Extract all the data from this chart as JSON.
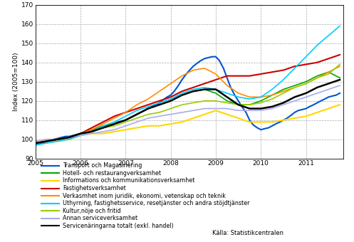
{
  "title": "",
  "ylabel": "Index (2005=100)",
  "ylim": [
    90,
    170
  ],
  "yticks": [
    90,
    100,
    110,
    120,
    130,
    140,
    150,
    160,
    170
  ],
  "xlim": [
    2005.0,
    2011.83
  ],
  "xticks": [
    2005,
    2006,
    2007,
    2008,
    2009,
    2010,
    2011
  ],
  "source_text": "Källa: Statistikcentralen",
  "legend": [
    {
      "label": "Transport och Magasinering",
      "color": "#0055CC"
    },
    {
      "label": "Hotell- och restaurangverksamhet",
      "color": "#00AA00"
    },
    {
      "label": "Informations och kommunikationsverksamhet",
      "color": "#FFD700"
    },
    {
      "label": "Fastighetsverksamhet",
      "color": "#CC0000"
    },
    {
      "label": "Verkasmhet inom juridik, ekonomi, vetenskap och teknik",
      "color": "#FF8C00"
    },
    {
      "label": "Uthyrning, fastighetsservice, resetjänster och andra stöjdtjänster",
      "color": "#00CCFF"
    },
    {
      "label": "Kultur,nöje och fritid",
      "color": "#99CC00"
    },
    {
      "label": "Annan serviceverksamhet",
      "color": "#AAAAEE"
    },
    {
      "label": "Servicenäringarna totalt (exkl. handel)",
      "color": "#000000"
    }
  ],
  "series": {
    "transport": {
      "x": [
        2005.0,
        2005.08,
        2005.17,
        2005.25,
        2005.33,
        2005.42,
        2005.5,
        2005.58,
        2005.67,
        2005.75,
        2005.83,
        2005.92,
        2006.0,
        2006.08,
        2006.17,
        2006.25,
        2006.33,
        2006.42,
        2006.5,
        2006.58,
        2006.67,
        2006.75,
        2006.83,
        2006.92,
        2007.0,
        2007.08,
        2007.17,
        2007.25,
        2007.33,
        2007.42,
        2007.5,
        2007.58,
        2007.67,
        2007.75,
        2007.83,
        2007.92,
        2008.0,
        2008.08,
        2008.17,
        2008.25,
        2008.33,
        2008.42,
        2008.5,
        2008.58,
        2008.67,
        2008.75,
        2008.83,
        2008.92,
        2009.0,
        2009.08,
        2009.17,
        2009.25,
        2009.33,
        2009.42,
        2009.5,
        2009.58,
        2009.67,
        2009.75,
        2009.83,
        2009.92,
        2010.0,
        2010.08,
        2010.17,
        2010.25,
        2010.33,
        2010.42,
        2010.5,
        2010.58,
        2010.67,
        2010.75,
        2010.83,
        2010.92,
        2011.0,
        2011.08,
        2011.17,
        2011.25,
        2011.33,
        2011.42,
        2011.5,
        2011.58,
        2011.67,
        2011.75
      ],
      "y": [
        97.0,
        97.5,
        98.0,
        99.0,
        99.5,
        100.0,
        100.5,
        101.0,
        101.5,
        101.5,
        102.0,
        102.5,
        103.0,
        103.5,
        104.0,
        104.5,
        105.0,
        105.5,
        106.0,
        106.5,
        107.0,
        108.0,
        109.0,
        109.5,
        110.0,
        111.0,
        112.0,
        113.0,
        114.0,
        115.0,
        116.0,
        117.0,
        118.0,
        119.0,
        120.5,
        122.0,
        123.0,
        125.0,
        128.0,
        131.0,
        133.5,
        136.0,
        138.0,
        139.5,
        141.0,
        142.0,
        142.5,
        143.0,
        143.0,
        141.0,
        137.0,
        132.0,
        127.0,
        123.0,
        120.0,
        117.0,
        114.0,
        110.0,
        107.5,
        106.0,
        105.0,
        105.5,
        106.0,
        107.0,
        108.0,
        109.0,
        110.0,
        111.0,
        112.5,
        114.0,
        115.0,
        115.5,
        116.0,
        117.0,
        118.0,
        119.0,
        120.0,
        121.0,
        122.0,
        122.5,
        123.0,
        124.0
      ]
    },
    "hotell": {
      "x": [
        2005.0,
        2005.25,
        2005.5,
        2005.75,
        2006.0,
        2006.25,
        2006.5,
        2006.75,
        2007.0,
        2007.25,
        2007.5,
        2007.75,
        2008.0,
        2008.25,
        2008.5,
        2008.75,
        2009.0,
        2009.25,
        2009.5,
        2009.75,
        2010.0,
        2010.25,
        2010.5,
        2010.75,
        2011.0,
        2011.25,
        2011.5,
        2011.75
      ],
      "y": [
        98,
        99,
        100,
        101,
        103,
        105,
        107,
        108,
        110,
        113,
        116,
        118,
        120,
        123,
        125,
        126,
        124,
        120,
        118,
        118,
        120,
        123,
        126,
        128,
        130,
        133,
        135,
        132
      ]
    },
    "ikt": {
      "x": [
        2005.0,
        2005.25,
        2005.5,
        2005.75,
        2006.0,
        2006.25,
        2006.5,
        2006.75,
        2007.0,
        2007.25,
        2007.5,
        2007.75,
        2008.0,
        2008.25,
        2008.5,
        2008.75,
        2009.0,
        2009.25,
        2009.5,
        2009.75,
        2010.0,
        2010.25,
        2010.5,
        2010.75,
        2011.0,
        2011.25,
        2011.5,
        2011.75
      ],
      "y": [
        98,
        99,
        99,
        100,
        102,
        103,
        103,
        104,
        105,
        106,
        107,
        107,
        108,
        109,
        111,
        113,
        115,
        113,
        111,
        109,
        109,
        109,
        110,
        111,
        112,
        114,
        116,
        118
      ]
    },
    "fastighet": {
      "x": [
        2005.0,
        2005.25,
        2005.5,
        2005.75,
        2006.0,
        2006.25,
        2006.5,
        2006.75,
        2007.0,
        2007.25,
        2007.5,
        2007.75,
        2008.0,
        2008.25,
        2008.5,
        2008.75,
        2009.0,
        2009.25,
        2009.5,
        2009.75,
        2010.0,
        2010.25,
        2010.5,
        2010.75,
        2011.0,
        2011.25,
        2011.5,
        2011.75
      ],
      "y": [
        98,
        99,
        100,
        101,
        103,
        106,
        109,
        112,
        114,
        116,
        118,
        120,
        122,
        125,
        127,
        129,
        131,
        133,
        133,
        133,
        134,
        135,
        136,
        138,
        139,
        140,
        142,
        144
      ]
    },
    "juridik": {
      "x": [
        2005.0,
        2005.25,
        2005.5,
        2005.75,
        2006.0,
        2006.25,
        2006.5,
        2006.75,
        2007.0,
        2007.25,
        2007.5,
        2007.75,
        2008.0,
        2008.25,
        2008.5,
        2008.75,
        2009.0,
        2009.25,
        2009.5,
        2009.75,
        2010.0,
        2010.25,
        2010.5,
        2010.75,
        2011.0,
        2011.25,
        2011.5,
        2011.75
      ],
      "y": [
        99,
        100,
        100,
        101,
        103,
        105,
        108,
        111,
        114,
        118,
        121,
        125,
        129,
        133,
        136,
        137,
        134,
        128,
        124,
        122,
        122,
        123,
        125,
        127,
        129,
        132,
        135,
        138
      ]
    },
    "uthyrning": {
      "x": [
        2005.0,
        2005.25,
        2005.5,
        2005.75,
        2006.0,
        2006.25,
        2006.5,
        2006.75,
        2007.0,
        2007.25,
        2007.5,
        2007.75,
        2008.0,
        2008.25,
        2008.5,
        2008.75,
        2009.0,
        2009.25,
        2009.5,
        2009.75,
        2010.0,
        2010.25,
        2010.5,
        2010.75,
        2011.0,
        2011.25,
        2011.5,
        2011.75
      ],
      "y": [
        97,
        98,
        99,
        100,
        102,
        104,
        107,
        109,
        112,
        115,
        117,
        119,
        121,
        124,
        126,
        127,
        126,
        124,
        122,
        121,
        122,
        126,
        131,
        137,
        143,
        149,
        154,
        159
      ]
    },
    "kultur": {
      "x": [
        2005.0,
        2005.25,
        2005.5,
        2005.75,
        2006.0,
        2006.25,
        2006.5,
        2006.75,
        2007.0,
        2007.25,
        2007.5,
        2007.75,
        2008.0,
        2008.25,
        2008.5,
        2008.75,
        2009.0,
        2009.25,
        2009.5,
        2009.75,
        2010.0,
        2010.25,
        2010.5,
        2010.75,
        2011.0,
        2011.25,
        2011.5,
        2011.75
      ],
      "y": [
        98,
        99,
        100,
        101,
        103,
        104,
        106,
        107,
        109,
        111,
        113,
        114,
        116,
        118,
        119,
        120,
        120,
        119,
        118,
        118,
        119,
        121,
        124,
        127,
        129,
        132,
        134,
        139
      ]
    },
    "annan": {
      "x": [
        2005.0,
        2005.25,
        2005.5,
        2005.75,
        2006.0,
        2006.25,
        2006.5,
        2006.75,
        2007.0,
        2007.25,
        2007.5,
        2007.75,
        2008.0,
        2008.25,
        2008.5,
        2008.75,
        2009.0,
        2009.25,
        2009.5,
        2009.75,
        2010.0,
        2010.25,
        2010.5,
        2010.75,
        2011.0,
        2011.25,
        2011.5,
        2011.75
      ],
      "y": [
        99,
        100,
        100,
        101,
        102,
        103,
        104,
        105,
        107,
        109,
        111,
        112,
        113,
        114,
        115,
        116,
        116,
        116,
        115,
        115,
        115,
        116,
        118,
        120,
        122,
        124,
        126,
        128
      ]
    },
    "totalt": {
      "x": [
        2005.0,
        2005.25,
        2005.5,
        2005.75,
        2006.0,
        2006.25,
        2006.5,
        2006.75,
        2007.0,
        2007.25,
        2007.5,
        2007.75,
        2008.0,
        2008.25,
        2008.5,
        2008.75,
        2009.0,
        2009.25,
        2009.5,
        2009.75,
        2010.0,
        2010.25,
        2010.5,
        2010.75,
        2011.0,
        2011.25,
        2011.5,
        2011.75
      ],
      "y": [
        98,
        99,
        100,
        101,
        103,
        104,
        106,
        108,
        110,
        113,
        116,
        118,
        120,
        123,
        125,
        126,
        126,
        122,
        118,
        116,
        116,
        117,
        119,
        122,
        124,
        127,
        129,
        131
      ]
    }
  }
}
